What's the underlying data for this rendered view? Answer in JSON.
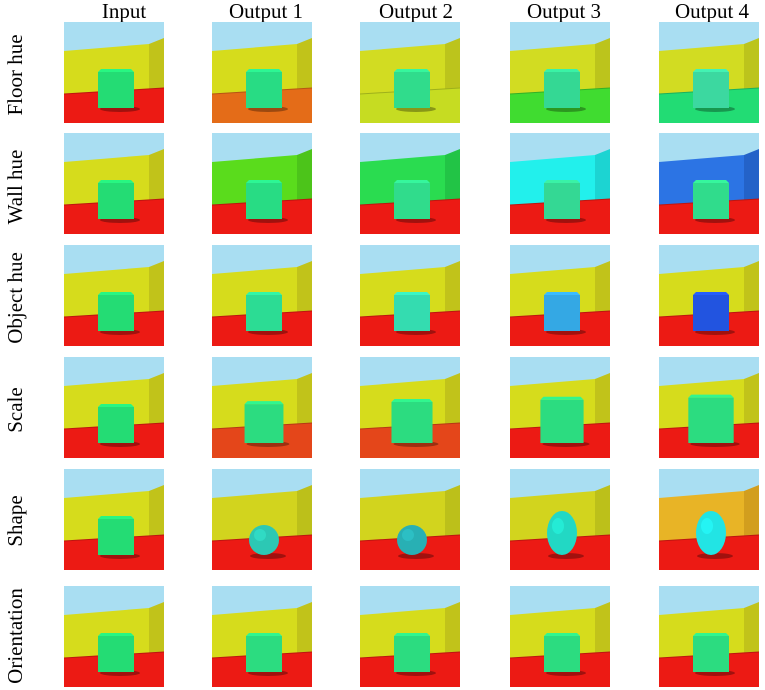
{
  "columns": [
    "Input",
    "Output 1",
    "Output 2",
    "Output 3",
    "Output 4"
  ],
  "rows": [
    {
      "label": "Floor hue",
      "cells": [
        {
          "sky": "#a9def2",
          "wall": "#d6dc1c",
          "wallSide": "#c1c31a",
          "floor": "#ec1a14",
          "object": "#24dc74",
          "shape": "cube"
        },
        {
          "sky": "#a9def2",
          "wall": "#d6dc1c",
          "wallSide": "#c1c31a",
          "floor": "#e46c18",
          "object": "#28dc84",
          "shape": "cube"
        },
        {
          "sky": "#a9def2",
          "wall": "#d2dc22",
          "wallSide": "#bcc41c",
          "floor": "#c6dc22",
          "object": "#30dc8c",
          "shape": "cube"
        },
        {
          "sky": "#a9def2",
          "wall": "#d2dc22",
          "wallSide": "#bcc41c",
          "floor": "#40dc30",
          "object": "#34d894",
          "shape": "cube"
        },
        {
          "sky": "#a9def2",
          "wall": "#d2dc22",
          "wallSide": "#bcc41c",
          "floor": "#22dc74",
          "object": "#3cd8a0",
          "shape": "cube"
        }
      ]
    },
    {
      "label": "Wall hue",
      "cells": [
        {
          "sky": "#a9def2",
          "wall": "#d6dc1c",
          "wallSide": "#c1c31a",
          "floor": "#ec1a14",
          "object": "#24dc74",
          "shape": "cube"
        },
        {
          "sky": "#a9def2",
          "wall": "#5adc1c",
          "wallSide": "#4cc41a",
          "floor": "#ec1a14",
          "object": "#28dc84",
          "shape": "cube"
        },
        {
          "sky": "#a9def2",
          "wall": "#2adc50",
          "wallSide": "#22c446",
          "floor": "#ec1a14",
          "object": "#30dc8c",
          "shape": "cube"
        },
        {
          "sky": "#a9def2",
          "wall": "#22f0ec",
          "wallSide": "#1cd4d2",
          "floor": "#ec1a14",
          "object": "#34d894",
          "shape": "cube"
        },
        {
          "sky": "#a9def2",
          "wall": "#2c74e4",
          "wallSide": "#2462c8",
          "floor": "#ec1a14",
          "object": "#30dc8c",
          "shape": "cube"
        }
      ]
    },
    {
      "label": "Object hue",
      "cells": [
        {
          "sky": "#a9def2",
          "wall": "#d6dc1c",
          "wallSide": "#c1c31a",
          "floor": "#ec1a14",
          "object": "#24dc74",
          "shape": "cube"
        },
        {
          "sky": "#a9def2",
          "wall": "#d6dc1c",
          "wallSide": "#c1c31a",
          "floor": "#ec1a14",
          "object": "#2cdc94",
          "shape": "cube"
        },
        {
          "sky": "#a9def2",
          "wall": "#d6dc1c",
          "wallSide": "#c1c31a",
          "floor": "#ec1a14",
          "object": "#34dcb0",
          "shape": "cube"
        },
        {
          "sky": "#a9def2",
          "wall": "#d6dc1c",
          "wallSide": "#c1c31a",
          "floor": "#ec1a14",
          "object": "#34a8e4",
          "shape": "cube"
        },
        {
          "sky": "#a9def2",
          "wall": "#d6dc1c",
          "wallSide": "#c1c31a",
          "floor": "#ec1a14",
          "object": "#2254e0",
          "shape": "cube"
        }
      ]
    },
    {
      "label": "Scale",
      "cells": [
        {
          "sky": "#a9def2",
          "wall": "#d6dc1c",
          "wallSide": "#c1c31a",
          "floor": "#ec1a14",
          "object": "#24dc74",
          "shape": "cube",
          "scale": 1.0
        },
        {
          "sky": "#a9def2",
          "wall": "#d6dc1c",
          "wallSide": "#c1c31a",
          "floor": "#e4461a",
          "object": "#2cdc80",
          "shape": "cube",
          "scale": 1.08
        },
        {
          "sky": "#a9def2",
          "wall": "#d6dc1c",
          "wallSide": "#c1c31a",
          "floor": "#e4461a",
          "object": "#2cdc80",
          "shape": "cube",
          "scale": 1.14
        },
        {
          "sky": "#a9def2",
          "wall": "#d6dc1c",
          "wallSide": "#c1c31a",
          "floor": "#ec1a14",
          "object": "#2cdc80",
          "shape": "cube",
          "scale": 1.2
        },
        {
          "sky": "#a9def2",
          "wall": "#d6dc1c",
          "wallSide": "#c1c31a",
          "floor": "#ec1a14",
          "object": "#2cdc80",
          "shape": "cube",
          "scale": 1.26
        }
      ]
    },
    {
      "label": "Shape",
      "cells": [
        {
          "sky": "#a9def2",
          "wall": "#d6dc1c",
          "wallSide": "#c1c31a",
          "floor": "#ec1a14",
          "object": "#24dc74",
          "shape": "cube"
        },
        {
          "sky": "#a9def2",
          "wall": "#d2d41e",
          "wallSide": "#bcc01a",
          "floor": "#ec1a14",
          "object": "#2cc8b4",
          "shape": "blob"
        },
        {
          "sky": "#a9def2",
          "wall": "#d2d41e",
          "wallSide": "#bcc01a",
          "floor": "#ec1a14",
          "object": "#28b0b4",
          "shape": "sphere"
        },
        {
          "sky": "#a9def2",
          "wall": "#d2d41e",
          "wallSide": "#bcc01a",
          "floor": "#ec1a14",
          "object": "#22d8c4",
          "shape": "ellipsoid"
        },
        {
          "sky": "#a9def2",
          "wall": "#e8b426",
          "wallSide": "#d29e1e",
          "floor": "#ec1a14",
          "object": "#22e4e4",
          "shape": "ellipsoid"
        }
      ]
    },
    {
      "label": "Orientation",
      "cells": [
        {
          "sky": "#a9def2",
          "wall": "#d6dc1c",
          "wallSide": "#c1c31a",
          "floor": "#ec1a14",
          "object": "#24dc74",
          "shape": "cube"
        },
        {
          "sky": "#a9def2",
          "wall": "#d6dc1c",
          "wallSide": "#c1c31a",
          "floor": "#ec1a14",
          "object": "#2cdc80",
          "shape": "cube"
        },
        {
          "sky": "#a9def2",
          "wall": "#d6dc1c",
          "wallSide": "#c1c31a",
          "floor": "#ec1a14",
          "object": "#2cdc80",
          "shape": "cube"
        },
        {
          "sky": "#a9def2",
          "wall": "#d6dc1c",
          "wallSide": "#c1c31a",
          "floor": "#ec1a14",
          "object": "#2cdc80",
          "shape": "cube"
        },
        {
          "sky": "#a9def2",
          "wall": "#d6dc1c",
          "wallSide": "#c1c31a",
          "floor": "#ec1a14",
          "object": "#2cdc80",
          "shape": "cube"
        }
      ]
    }
  ]
}
